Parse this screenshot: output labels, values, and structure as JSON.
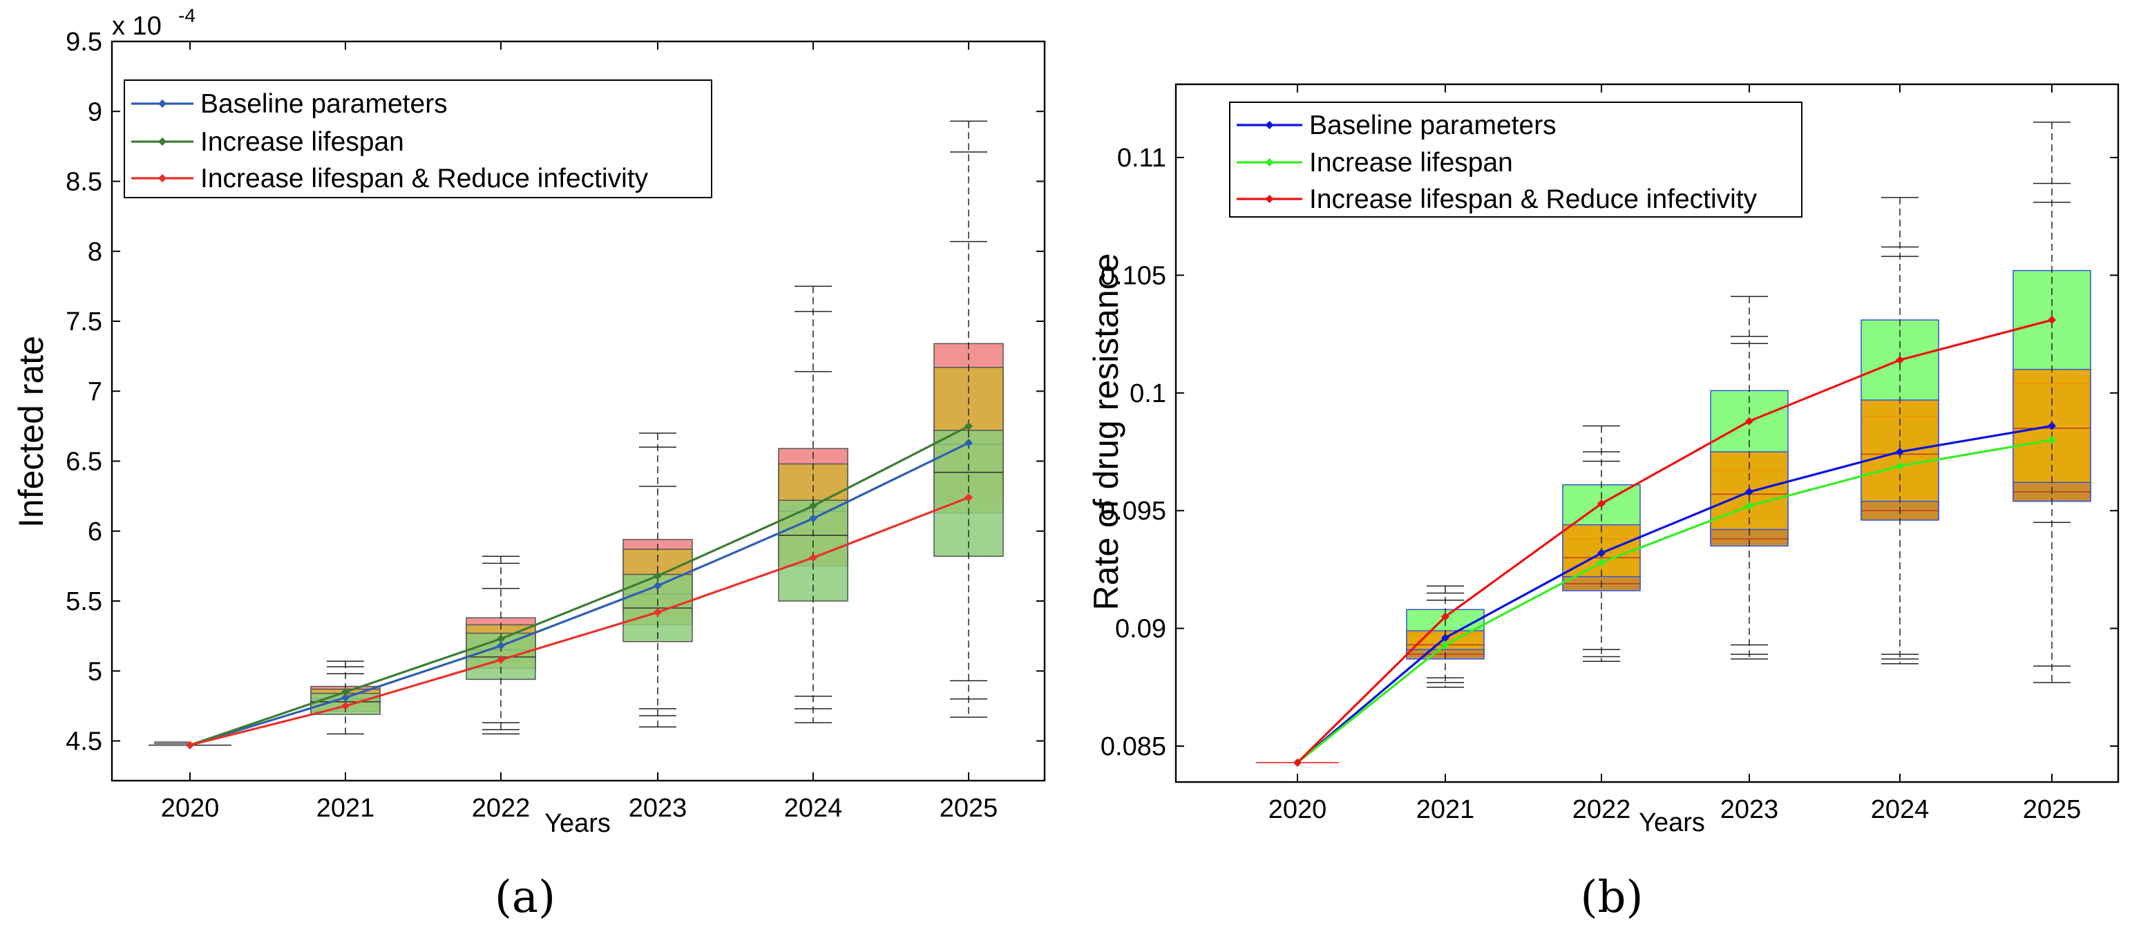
{
  "chart_data": [
    {
      "type": "line",
      "panel_label": "(a)",
      "ylabel": "Infected rate",
      "xlabel": "Years",
      "y_exponent_base": "x 10",
      "y_exponent_power": "-4",
      "categories": [
        "2020",
        "2021",
        "2022",
        "2023",
        "2024",
        "2025"
      ],
      "ylim": [
        4.3,
        9.5
      ],
      "yticks": [
        4.5,
        5,
        5.5,
        6,
        6.5,
        7,
        7.5,
        8,
        8.5,
        9,
        9.5
      ],
      "ytick_labels": [
        "4.5",
        "5",
        "5.5",
        "6",
        "6.5",
        "7",
        "7.5",
        "8",
        "8.5",
        "9",
        "9.5"
      ],
      "legend_position": "top-left",
      "series": [
        {
          "name": "Baseline parameters",
          "color": "#2f5fb3",
          "values": [
            4.47,
            4.81,
            5.18,
            5.61,
            6.09,
            6.63
          ]
        },
        {
          "name": "Increase lifespan",
          "color": "#3c7d35",
          "values": [
            4.47,
            4.85,
            5.23,
            5.68,
            6.18,
            6.75
          ]
        },
        {
          "name": "Increase lifespan & Reduce infectivity",
          "color": "#e8312a",
          "values": [
            4.47,
            4.75,
            5.08,
            5.42,
            5.81,
            6.24
          ]
        }
      ],
      "boxes": [
        {
          "series": "Increase lifespan & Reduce infectivity",
          "color": "#f08080",
          "q1": [
            4.47,
            4.73,
            5.07,
            5.4,
            5.76,
            6.22
          ],
          "q3": [
            4.47,
            4.89,
            5.38,
            5.94,
            6.59,
            7.34
          ],
          "median": [
            4.47,
            4.8,
            5.2,
            5.6,
            6.15,
            6.72
          ]
        },
        {
          "series": "Baseline parameters",
          "color": "#d4b23a",
          "q1": [
            4.47,
            4.71,
            5.02,
            5.33,
            5.75,
            6.13
          ],
          "q3": [
            4.47,
            4.87,
            5.33,
            5.87,
            6.48,
            7.17
          ],
          "median": [
            4.47,
            4.8,
            5.15,
            5.55,
            6.14,
            6.62
          ]
        },
        {
          "series": "Increase lifespan",
          "color": "#8dcc7c",
          "q1": [
            4.47,
            4.69,
            4.94,
            5.21,
            5.5,
            5.82
          ],
          "q3": [
            4.47,
            4.84,
            5.27,
            5.69,
            6.22,
            6.72
          ],
          "median": [
            4.47,
            4.78,
            5.1,
            5.45,
            5.97,
            6.42
          ]
        }
      ],
      "whisker_caps": [
        [
          4.47
        ],
        [
          4.55,
          4.98,
          5.03,
          5.07
        ],
        [
          4.55,
          4.58,
          4.63,
          5.59,
          5.77,
          5.82
        ],
        [
          4.6,
          4.68,
          4.73,
          6.32,
          6.6,
          6.7
        ],
        [
          4.63,
          4.73,
          4.82,
          7.14,
          7.57,
          7.75
        ],
        [
          4.67,
          4.8,
          4.93,
          8.07,
          8.71,
          8.93
        ]
      ]
    },
    {
      "type": "line",
      "panel_label": "(b)",
      "ylabel": "Rate of drug resistance",
      "xlabel": "Years",
      "categories": [
        "2020",
        "2021",
        "2022",
        "2023",
        "2024",
        "2025"
      ],
      "ylim": [
        0.083,
        0.1125
      ],
      "yticks": [
        0.085,
        0.09,
        0.095,
        0.1,
        0.105,
        0.11
      ],
      "ytick_labels": [
        "0.085",
        "0.09",
        "0.095",
        "0.1",
        "0.105",
        "0.11"
      ],
      "legend_position": "top-left",
      "series": [
        {
          "name": "Baseline parameters",
          "color": "#0a14e0",
          "values": [
            0.0843,
            0.0896,
            0.0932,
            0.0958,
            0.0975,
            0.0986
          ]
        },
        {
          "name": "Increase lifespan",
          "color": "#33ee22",
          "values": [
            0.0843,
            0.0893,
            0.0928,
            0.0952,
            0.0969,
            0.098
          ]
        },
        {
          "name": "Increase lifespan & Reduce infectivity",
          "color": "#ee1111",
          "values": [
            0.0843,
            0.0905,
            0.0953,
            0.0988,
            0.1014,
            0.1031
          ]
        }
      ],
      "boxes": [
        {
          "series": "Increase lifespan & Reduce infectivity",
          "color": "#7dfa72",
          "q1": [
            0.0843,
            0.0889,
            0.0918,
            0.0937,
            0.0947,
            0.0955
          ],
          "q3": [
            0.0843,
            0.0908,
            0.0961,
            0.1001,
            0.1031,
            0.1052
          ],
          "median": [
            0.0843,
            0.0898,
            0.0938,
            0.0967,
            0.099,
            0.1004
          ]
        },
        {
          "series": "Baseline parameters",
          "color": "#f0a000",
          "q1": [
            0.0843,
            0.0888,
            0.0917,
            0.0936,
            0.0946,
            0.0954
          ],
          "q3": [
            0.0843,
            0.0899,
            0.0944,
            0.0975,
            0.0997,
            0.101
          ],
          "median": [
            0.0843,
            0.0893,
            0.093,
            0.0957,
            0.0974,
            0.0985
          ]
        },
        {
          "series": "Increase lifespan",
          "color": "#c88a30",
          "q1": [
            0.0843,
            0.0887,
            0.0916,
            0.0935,
            0.0946,
            0.0954
          ],
          "q3": [
            0.0843,
            0.0891,
            0.0922,
            0.0942,
            0.0954,
            0.0962
          ],
          "median": [
            0.0843,
            0.0889,
            0.0919,
            0.0938,
            0.095,
            0.0958
          ]
        }
      ],
      "whisker_caps": [
        [
          0.0843
        ],
        [
          0.0875,
          0.0877,
          0.0879,
          0.0912,
          0.0915,
          0.0918
        ],
        [
          0.0886,
          0.0888,
          0.0891,
          0.0971,
          0.0975,
          0.0986
        ],
        [
          0.0887,
          0.0889,
          0.0893,
          0.1021,
          0.1024,
          0.1041
        ],
        [
          0.0885,
          0.0887,
          0.0889,
          0.1058,
          0.1062,
          0.1083
        ],
        [
          0.0877,
          0.0884,
          0.0945,
          0.1081,
          0.1089,
          0.1115
        ]
      ]
    }
  ]
}
